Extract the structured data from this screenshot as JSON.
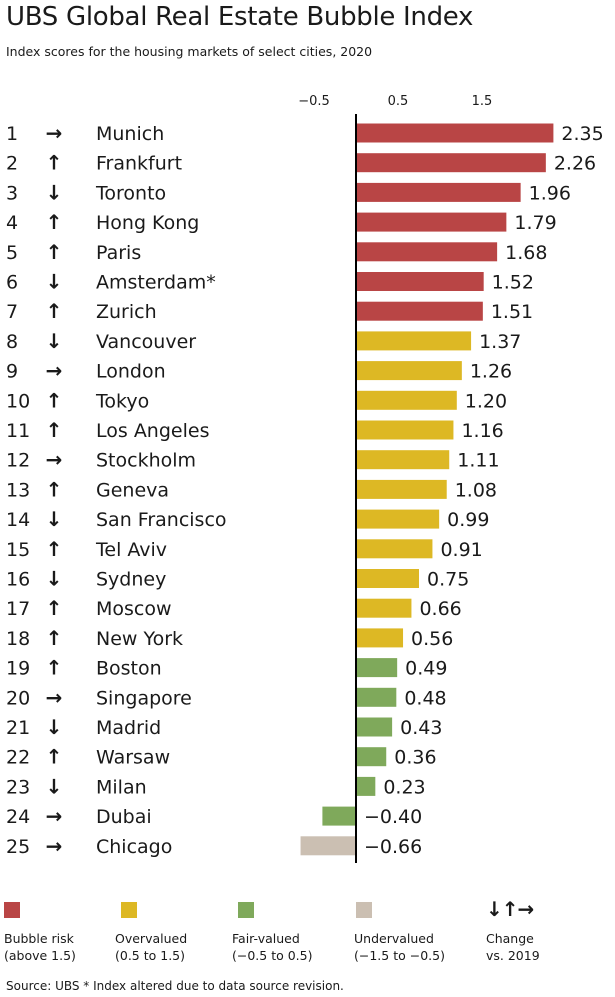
{
  "chart_data": {
    "type": "bar",
    "orientation": "horizontal",
    "title": "UBS Global Real Estate Bubble Index",
    "subtitle": "Index scores for the housing markets of select cities, 2020",
    "x_ticks": [
      "−0.5",
      "0.5",
      "1.5"
    ],
    "x_tick_values": [
      -0.5,
      0.5,
      1.5
    ],
    "xlim": [
      -0.7,
      2.4
    ],
    "categories": [
      "Munich",
      "Frankfurt",
      "Toronto",
      "Hong Kong",
      "Paris",
      "Amsterdam*",
      "Zurich",
      "Vancouver",
      "London",
      "Tokyo",
      "Los Angeles",
      "Stockholm",
      "Geneva",
      "San Francisco",
      "Tel Aviv",
      "Sydney",
      "Moscow",
      "New York",
      "Boston",
      "Singapore",
      "Madrid",
      "Warsaw",
      "Milan",
      "Dubai",
      "Chicago"
    ],
    "ranks": [
      "1",
      "2",
      "3",
      "4",
      "5",
      "6",
      "7",
      "8",
      "9",
      "10",
      "11",
      "12",
      "13",
      "14",
      "15",
      "16",
      "17",
      "18",
      "19",
      "20",
      "21",
      "22",
      "23",
      "24",
      "25"
    ],
    "values": [
      2.35,
      2.26,
      1.96,
      1.79,
      1.68,
      1.52,
      1.51,
      1.37,
      1.26,
      1.2,
      1.16,
      1.11,
      1.08,
      0.99,
      0.91,
      0.75,
      0.66,
      0.56,
      0.49,
      0.48,
      0.43,
      0.36,
      0.23,
      -0.4,
      -0.66
    ],
    "value_labels": [
      "2.35",
      "2.26",
      "1.96",
      "1.79",
      "1.68",
      "1.52",
      "1.51",
      "1.37",
      "1.26",
      "1.20",
      "1.16",
      "1.11",
      "1.08",
      "0.99",
      "0.91",
      "0.75",
      "0.66",
      "0.56",
      "0.49",
      "0.48",
      "0.43",
      "0.36",
      "0.23",
      "−0.40",
      "−0.66"
    ],
    "change_vs_2019": [
      "right",
      "up",
      "down",
      "up",
      "up",
      "down",
      "up",
      "down",
      "right",
      "up",
      "up",
      "right",
      "up",
      "down",
      "up",
      "down",
      "up",
      "up",
      "up",
      "right",
      "down",
      "up",
      "down",
      "right",
      "right"
    ],
    "categories_legend": [
      {
        "key": "bubble",
        "line1": "Bubble risk",
        "line2": "(above 1.5)",
        "color": "#b94545"
      },
      {
        "key": "over",
        "line1": "Overvalued",
        "line2": "(0.5 to 1.5)",
        "color": "#ddb824"
      },
      {
        "key": "fair",
        "line1": "Fair-valued",
        "line2": "(−0.5 to 0.5)",
        "color": "#7fa95b"
      },
      {
        "key": "under",
        "line1": "Undervalued",
        "line2": "(−1.5 to −0.5)",
        "color": "#cbbfb2"
      }
    ]
  },
  "legend_change": {
    "arrows": "↓↑→",
    "line1": "Change",
    "line2": "vs. 2019"
  },
  "footnote": "Source: UBS  * Index altered due to data source revision.",
  "icons": {
    "up": "↑",
    "down": "↓",
    "right": "→"
  }
}
